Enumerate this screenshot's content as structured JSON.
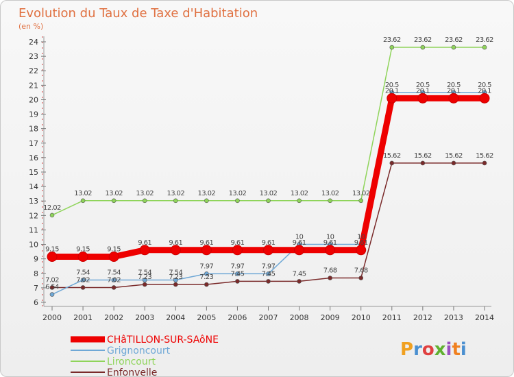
{
  "chart_data": {
    "type": "line",
    "title": "Evolution du Taux de Taxe d'Habitation",
    "subtitle": "(en %)",
    "x": [
      "2000",
      "2001",
      "2002",
      "2003",
      "2004",
      "2005",
      "2006",
      "2007",
      "2008",
      "2009",
      "2010",
      "2011",
      "2012",
      "2013",
      "2014"
    ],
    "ylim": [
      6,
      24
    ],
    "yticks": [
      6,
      7,
      8,
      9,
      10,
      11,
      12,
      13,
      14,
      15,
      16,
      17,
      18,
      19,
      20,
      21,
      22,
      23,
      24
    ],
    "legend_position": "bottom-left",
    "series": [
      {
        "name": "CHâTILLON-SUR-SAôNE",
        "color": "#ee0000",
        "values": [
          9.15,
          9.15,
          9.15,
          9.61,
          9.61,
          9.61,
          9.61,
          9.61,
          9.61,
          9.61,
          9.61,
          20.1,
          20.1,
          20.1,
          20.1
        ],
        "labels": [
          "9.15",
          "9.15",
          "9.15",
          "9.61",
          "9.61",
          "9.61",
          "9.61",
          "9.61",
          "9.61",
          "9.61",
          "9.61",
          "20.1",
          "20.1",
          "20.1",
          "20.1"
        ]
      },
      {
        "name": "Grignoncourt",
        "color": "#6fa8d6",
        "values": [
          6.54,
          7.54,
          7.54,
          7.54,
          7.54,
          7.97,
          7.97,
          7.97,
          10,
          10,
          10,
          20.5,
          20.5,
          20.5,
          20.5
        ],
        "labels": [
          "6.54",
          "7.54",
          "7.54",
          "7.54",
          "7.54",
          "7.97",
          "7.97",
          "7.97",
          "10",
          "10",
          "10",
          "20.5",
          "20.5",
          "20.5",
          "20.5"
        ]
      },
      {
        "name": "Lironcourt",
        "color": "#8fd45a",
        "values": [
          12.02,
          13.02,
          13.02,
          13.02,
          13.02,
          13.02,
          13.02,
          13.02,
          13.02,
          13.02,
          13.02,
          23.62,
          23.62,
          23.62,
          23.62
        ],
        "labels": [
          "12.02",
          "13.02",
          "13.02",
          "13.02",
          "13.02",
          "13.02",
          "13.02",
          "13.02",
          "13.02",
          "13.02",
          "13.02",
          "23.62",
          "23.62",
          "23.62",
          "23.62"
        ]
      },
      {
        "name": "Enfonvelle",
        "color": "#7a2a2a",
        "values": [
          7.02,
          7.02,
          7.02,
          7.23,
          7.23,
          7.23,
          7.45,
          7.45,
          7.45,
          7.68,
          7.68,
          15.62,
          15.62,
          15.62,
          15.62
        ],
        "labels": [
          "7.02",
          "7.02",
          "7.02",
          "7.23",
          "7.23",
          "7.23",
          "7.45",
          "7.45",
          "7.45",
          "7.68",
          "7.68",
          "15.62",
          "15.62",
          "15.62",
          "15.62"
        ]
      }
    ]
  },
  "logo": {
    "text": "Proxiti",
    "colors": [
      "#f0a020",
      "#4a8fd0",
      "#e04040",
      "#60b030",
      "#9a50c0",
      "#f08020",
      "#4a8fd0"
    ]
  }
}
